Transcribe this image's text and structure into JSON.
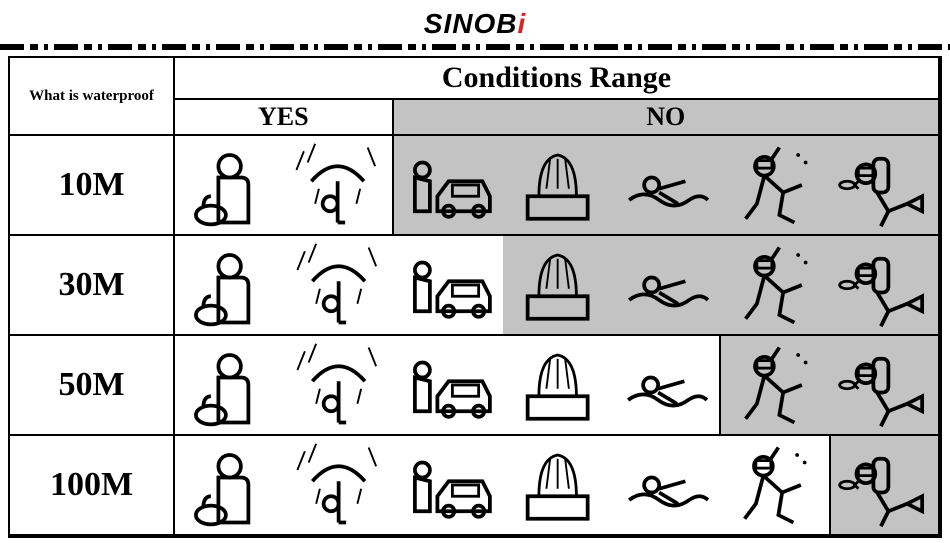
{
  "brand": {
    "name_main": "SINOB",
    "name_accent": "i"
  },
  "table": {
    "corner_label": "What is waterproof",
    "conditions_header": "Conditions Range",
    "yes_label": "YES",
    "no_label": "NO",
    "activities": [
      {
        "key": "hand_wash",
        "label": "hand-washing"
      },
      {
        "key": "rain",
        "label": "rain-umbrella"
      },
      {
        "key": "car_wash",
        "label": "car-washing"
      },
      {
        "key": "shower",
        "label": "shower-bath"
      },
      {
        "key": "swim",
        "label": "swimming"
      },
      {
        "key": "snorkel",
        "label": "snorkeling"
      },
      {
        "key": "scuba",
        "label": "scuba-diving"
      }
    ],
    "rows": [
      {
        "depth": "10M",
        "yes_count": 2
      },
      {
        "depth": "30M",
        "yes_count": 3
      },
      {
        "depth": "50M",
        "yes_count": 5
      },
      {
        "depth": "100M",
        "yes_count": 6
      }
    ]
  },
  "colors": {
    "no_bg": "#c3c3c3",
    "yes_bg": "#ffffff",
    "border": "#000000",
    "accent": "#d22222"
  },
  "typography": {
    "depth_fontsize_pt": 26,
    "header_fontsize_pt": 22,
    "subheader_fontsize_pt": 20,
    "corner_fontsize_pt": 11,
    "font_family": "serif"
  }
}
